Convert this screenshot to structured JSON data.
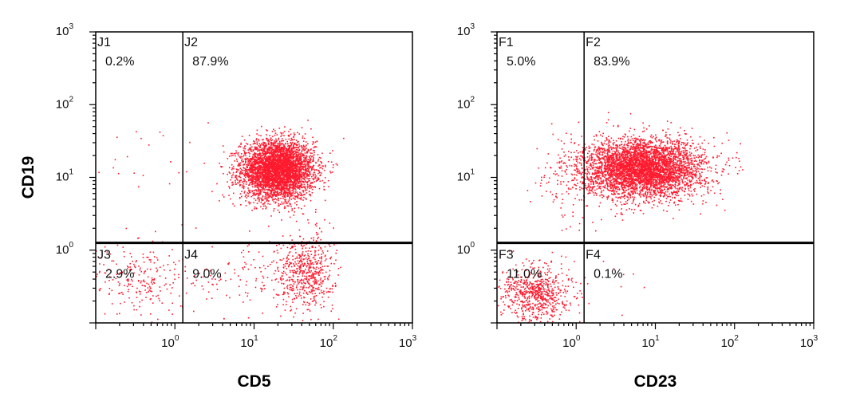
{
  "chart_data": [
    {
      "type": "scatter",
      "title": "",
      "xlabel": "CD5",
      "ylabel": "CD19",
      "x_scale": "log",
      "y_scale": "log",
      "xlim_log10": [
        -1.0,
        3.0
      ],
      "ylim_log10": [
        -1.0,
        3.0
      ],
      "x_ticks": [
        {
          "base": "10",
          "exp": "0",
          "value": 0
        },
        {
          "base": "10",
          "exp": "1",
          "value": 1
        },
        {
          "base": "10",
          "exp": "2",
          "value": 2
        },
        {
          "base": "10",
          "exp": "3",
          "value": 3
        }
      ],
      "y_ticks": [
        {
          "base": "10",
          "exp": "0",
          "value": 0
        },
        {
          "base": "10",
          "exp": "1",
          "value": 1
        },
        {
          "base": "10",
          "exp": "2",
          "value": 2
        },
        {
          "base": "10",
          "exp": "3",
          "value": 3
        }
      ],
      "gate_x_log10": 0.1,
      "gate_y_log10": 0.1,
      "dot_color": "#ff1a2e",
      "quadrants": [
        {
          "name": "J1",
          "percent": "0.2%",
          "position": "upper-left"
        },
        {
          "name": "J2",
          "percent": "87.9%",
          "position": "upper-right"
        },
        {
          "name": "J3",
          "percent": "2.9%",
          "position": "lower-left"
        },
        {
          "name": "J4",
          "percent": "9.0%",
          "position": "lower-right"
        }
      ],
      "populations": [
        {
          "cx": 1.3,
          "cy": 1.1,
          "sx": 0.23,
          "sy": 0.2,
          "count": 4200
        },
        {
          "cx": 1.65,
          "cy": -0.3,
          "sx": 0.18,
          "sy": 0.26,
          "count": 560
        },
        {
          "cx": 1.0,
          "cy": -0.35,
          "sx": 0.5,
          "sy": 0.3,
          "count": 150
        },
        {
          "cx": -0.45,
          "cy": -0.4,
          "sx": 0.3,
          "sy": 0.25,
          "count": 220
        },
        {
          "cx": -0.4,
          "cy": 1.2,
          "sx": 0.3,
          "sy": 0.3,
          "count": 20
        }
      ]
    },
    {
      "type": "scatter",
      "title": "",
      "xlabel": "CD23",
      "ylabel": "",
      "x_scale": "log",
      "y_scale": "log",
      "xlim_log10": [
        -1.0,
        3.0
      ],
      "ylim_log10": [
        -1.0,
        3.0
      ],
      "x_ticks": [
        {
          "base": "10",
          "exp": "0",
          "value": 0
        },
        {
          "base": "10",
          "exp": "1",
          "value": 1
        },
        {
          "base": "10",
          "exp": "2",
          "value": 2
        },
        {
          "base": "10",
          "exp": "3",
          "value": 3
        }
      ],
      "y_ticks": [
        {
          "base": "10",
          "exp": "0",
          "value": 0
        },
        {
          "base": "10",
          "exp": "1",
          "value": 1
        },
        {
          "base": "10",
          "exp": "2",
          "value": 2
        },
        {
          "base": "10",
          "exp": "3",
          "value": 3
        }
      ],
      "gate_x_log10": 0.1,
      "gate_y_log10": 0.1,
      "dot_color": "#ff1a2e",
      "quadrants": [
        {
          "name": "F1",
          "percent": "5.0%",
          "position": "upper-left"
        },
        {
          "name": "F2",
          "percent": "83.9%",
          "position": "upper-right"
        },
        {
          "name": "F3",
          "percent": "11.0%",
          "position": "lower-left"
        },
        {
          "name": "F4",
          "percent": "0.1%",
          "position": "lower-right"
        }
      ],
      "populations": [
        {
          "cx": 0.85,
          "cy": 1.12,
          "sx": 0.38,
          "sy": 0.2,
          "count": 4300
        },
        {
          "cx": -0.5,
          "cy": -0.6,
          "sx": 0.22,
          "sy": 0.2,
          "count": 700
        },
        {
          "cx": -0.05,
          "cy": 0.9,
          "sx": 0.25,
          "sy": 0.35,
          "count": 120
        },
        {
          "cx": 0.6,
          "cy": -0.5,
          "sx": 0.15,
          "sy": 0.2,
          "count": 6
        }
      ]
    }
  ]
}
